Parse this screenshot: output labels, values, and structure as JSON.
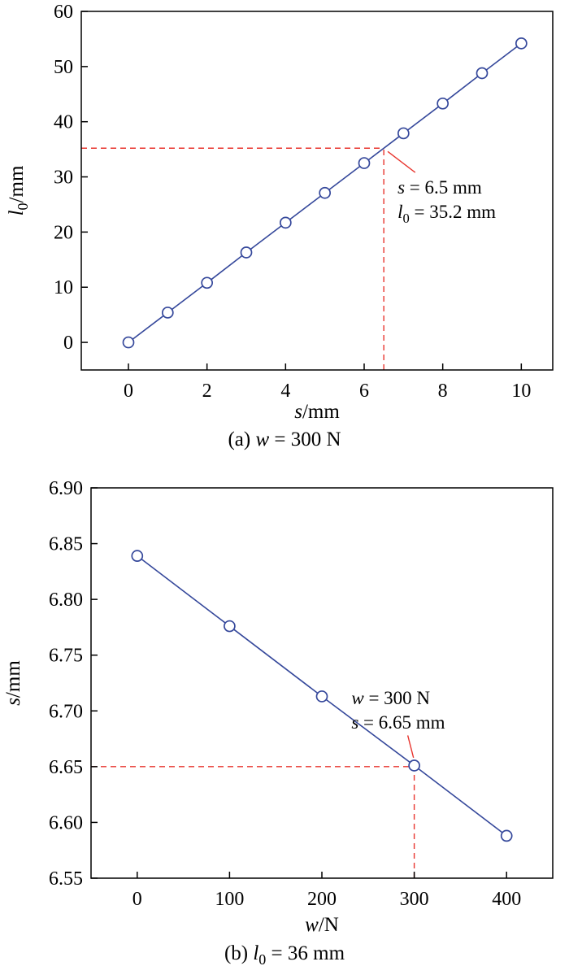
{
  "figure": {
    "background": "#ffffff",
    "axis_color": "#000000",
    "series_color": "#35489b",
    "accent_red": "#e8352e"
  },
  "chart_data": [
    {
      "type": "line",
      "title": "",
      "series_color": "#35489b",
      "marker": "open-circle",
      "x": [
        0,
        1,
        2,
        3,
        4,
        5,
        6,
        7,
        8,
        9,
        10
      ],
      "y": [
        0,
        5.4,
        10.8,
        16.3,
        21.7,
        27.1,
        32.5,
        37.9,
        43.3,
        48.8,
        54.2
      ],
      "xlim": [
        -1.2,
        10.8
      ],
      "ylim": [
        -5,
        60
      ],
      "xticks": [
        0,
        2,
        4,
        6,
        8,
        10
      ],
      "yticks": [
        0,
        10,
        20,
        30,
        40,
        50,
        60
      ],
      "xtick_decimals": 0,
      "ytick_decimals": 0,
      "grid": false,
      "xlabel": {
        "var": "s",
        "rest": "/mm"
      },
      "ylabel": {
        "var": "l",
        "sub": "0",
        "rest": "/mm"
      },
      "caption": {
        "prefix": "(a)  ",
        "var": "w",
        "rest": " = 300 N"
      },
      "crosshair": {
        "x": 6.5,
        "y": 35.2,
        "color": "#e8352e",
        "dash": "7 5"
      },
      "annotation": {
        "leader_color": "#e8352e",
        "lines": [
          {
            "var": "s",
            "rest": " = 6.5 mm"
          },
          {
            "var": "l",
            "sub": "0",
            "rest": " = 35.2 mm"
          }
        ],
        "x": 6.85,
        "y": 27.0,
        "line_height": 30,
        "leader": {
          "x1": 7.3,
          "y1": 30.8,
          "x2": 6.6,
          "y2": 34.6
        }
      }
    },
    {
      "type": "line",
      "title": "",
      "series_color": "#35489b",
      "marker": "open-circle",
      "x": [
        0,
        100,
        200,
        300,
        400
      ],
      "y": [
        6.839,
        6.776,
        6.713,
        6.651,
        6.588
      ],
      "xlim": [
        -50,
        450
      ],
      "ylim": [
        6.55,
        6.9
      ],
      "xticks": [
        0,
        100,
        200,
        300,
        400
      ],
      "yticks": [
        6.55,
        6.6,
        6.65,
        6.7,
        6.75,
        6.8,
        6.85,
        6.9
      ],
      "xtick_decimals": 0,
      "ytick_decimals": 2,
      "grid": false,
      "xlabel": {
        "var": "w",
        "rest": "/N"
      },
      "ylabel": {
        "var": "s",
        "rest": "/mm"
      },
      "caption": {
        "prefix": "(b)  ",
        "var": "l",
        "sub": "0",
        "rest": " = 36 mm"
      },
      "crosshair": {
        "x": 300,
        "y": 6.65,
        "color": "#e8352e",
        "dash": "7 5"
      },
      "annotation": {
        "leader_color": "#e8352e",
        "lines": [
          {
            "var": "w",
            "rest": " = 300 N"
          },
          {
            "var": "s",
            "rest": " = 6.65 mm"
          }
        ],
        "x": 232,
        "y": 6.706,
        "line_height": 30,
        "leader": {
          "x1": 293,
          "y1": 6.678,
          "x2": 299.2,
          "y2": 6.658
        }
      }
    }
  ]
}
